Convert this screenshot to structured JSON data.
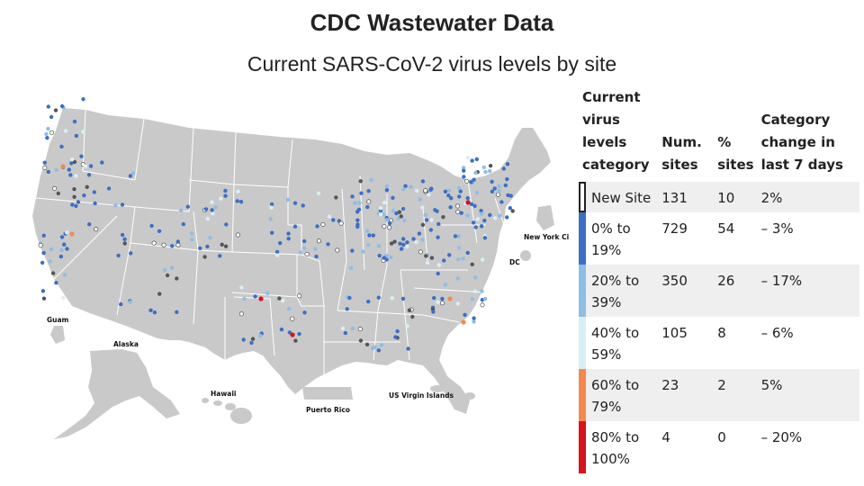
{
  "header": {
    "title": "CDC Wastewater Data",
    "subtitle": "Current SARS-CoV-2 virus levels by site"
  },
  "map": {
    "labels": {
      "guam": "Guam",
      "alaska": "Alaska",
      "hawaii": "Hawaii",
      "puerto_rico": "Puerto Rico",
      "usvi": "US Virgin Islands",
      "nyc": "New York Ci",
      "dc": "DC"
    },
    "colors": {
      "land": "#c9c9c9",
      "border": "#ffffff",
      "new_site": "#ffffff",
      "0_19": "#3c6fc4",
      "20_39": "#8fbde3",
      "40_59": "#d7f0f8",
      "60_79": "#f5894b",
      "80_100": "#d6141b",
      "no_data": "#555555"
    }
  },
  "legend": {
    "headers": {
      "category": "Current virus levels category",
      "num_sites": "Num. sites",
      "pct_sites": "% sites",
      "change": "Category change in last 7 days"
    },
    "rows": [
      {
        "category": "New Site",
        "num_sites": "131",
        "pct_sites": "10",
        "change": "2%",
        "color": "#ffffff",
        "shade": true
      },
      {
        "category": "0% to 19%",
        "num_sites": "729",
        "pct_sites": "54",
        "change": "– 3%",
        "color": "#3c6fc4",
        "shade": false
      },
      {
        "category": "20% to 39%",
        "num_sites": "350",
        "pct_sites": "26",
        "change": "– 17%",
        "color": "#8fbde3",
        "shade": true
      },
      {
        "category": "40% to 59%",
        "num_sites": "105",
        "pct_sites": "8",
        "change": "– 6%",
        "color": "#d7f0f8",
        "shade": false
      },
      {
        "category": "60% to 79%",
        "num_sites": "23",
        "pct_sites": "2",
        "change": "5%",
        "color": "#f5894b",
        "shade": true
      },
      {
        "category": "80% to 100%",
        "num_sites": "4",
        "pct_sites": "0",
        "change": "– 20%",
        "color": "#d6141b",
        "shade": false
      }
    ]
  }
}
